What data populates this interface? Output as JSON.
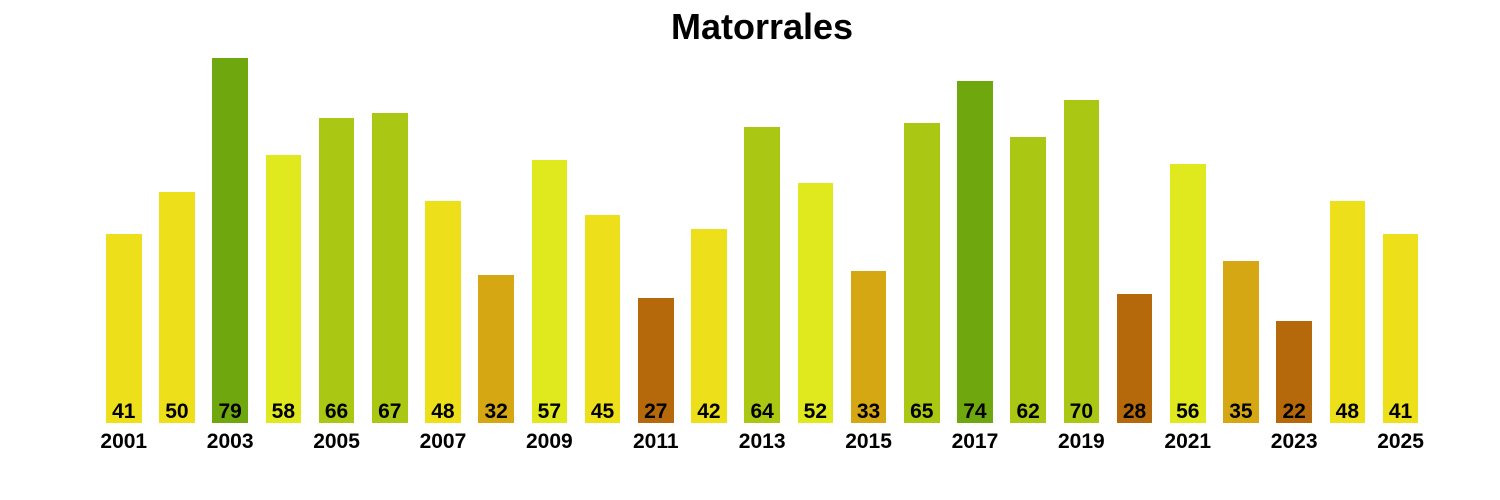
{
  "chart_data": {
    "type": "bar",
    "title": "Matorrales",
    "x": [
      2001,
      2002,
      2003,
      2004,
      2005,
      2006,
      2007,
      2008,
      2009,
      2010,
      2011,
      2012,
      2013,
      2014,
      2015,
      2016,
      2017,
      2018,
      2019,
      2020,
      2021,
      2022,
      2023,
      2024,
      2025
    ],
    "values": [
      41,
      50,
      79,
      58,
      66,
      67,
      48,
      32,
      57,
      45,
      27,
      42,
      64,
      52,
      33,
      65,
      74,
      62,
      70,
      28,
      56,
      35,
      22,
      48,
      41
    ],
    "bar_colors": [
      "#EEDF1B",
      "#EEDF1B",
      "#6FA80E",
      "#DFE91E",
      "#A9C713",
      "#A9C713",
      "#EEDF1B",
      "#D5A712",
      "#DFE91E",
      "#EEDF1B",
      "#B5690B",
      "#EEDF1B",
      "#A9C713",
      "#DFE91E",
      "#D5A712",
      "#A9C713",
      "#6FA80E",
      "#A9C713",
      "#A9C713",
      "#B5690B",
      "#DFE91E",
      "#D5A712",
      "#B5690B",
      "#EEDF1B",
      "#EEDF1B"
    ],
    "bar_value_labels": [
      "41",
      "50",
      "79",
      "58",
      "66",
      "67",
      "48",
      "32",
      "57",
      "45",
      "27",
      "42",
      "64",
      "52",
      "33",
      "65",
      "74",
      "62",
      "70",
      "28",
      "56",
      "35",
      "22",
      "48",
      "41"
    ],
    "x_tick_labels": [
      "2001",
      "2003",
      "2005",
      "2007",
      "2009",
      "2011",
      "2013",
      "2015",
      "2017",
      "2019",
      "2021",
      "2023",
      "2025"
    ],
    "ylim": [
      0,
      80
    ],
    "grid": false,
    "legend": false,
    "background_color": "#FFFFFF",
    "title_color": "#000000",
    "label_color": "#000000",
    "palette": {
      "low": "#B5690B",
      "mid_low": "#D5A712",
      "mid": "#EEDF1B",
      "mid_high": "#DFE91E",
      "high": "#A9C713",
      "highest": "#6FA80E"
    }
  }
}
